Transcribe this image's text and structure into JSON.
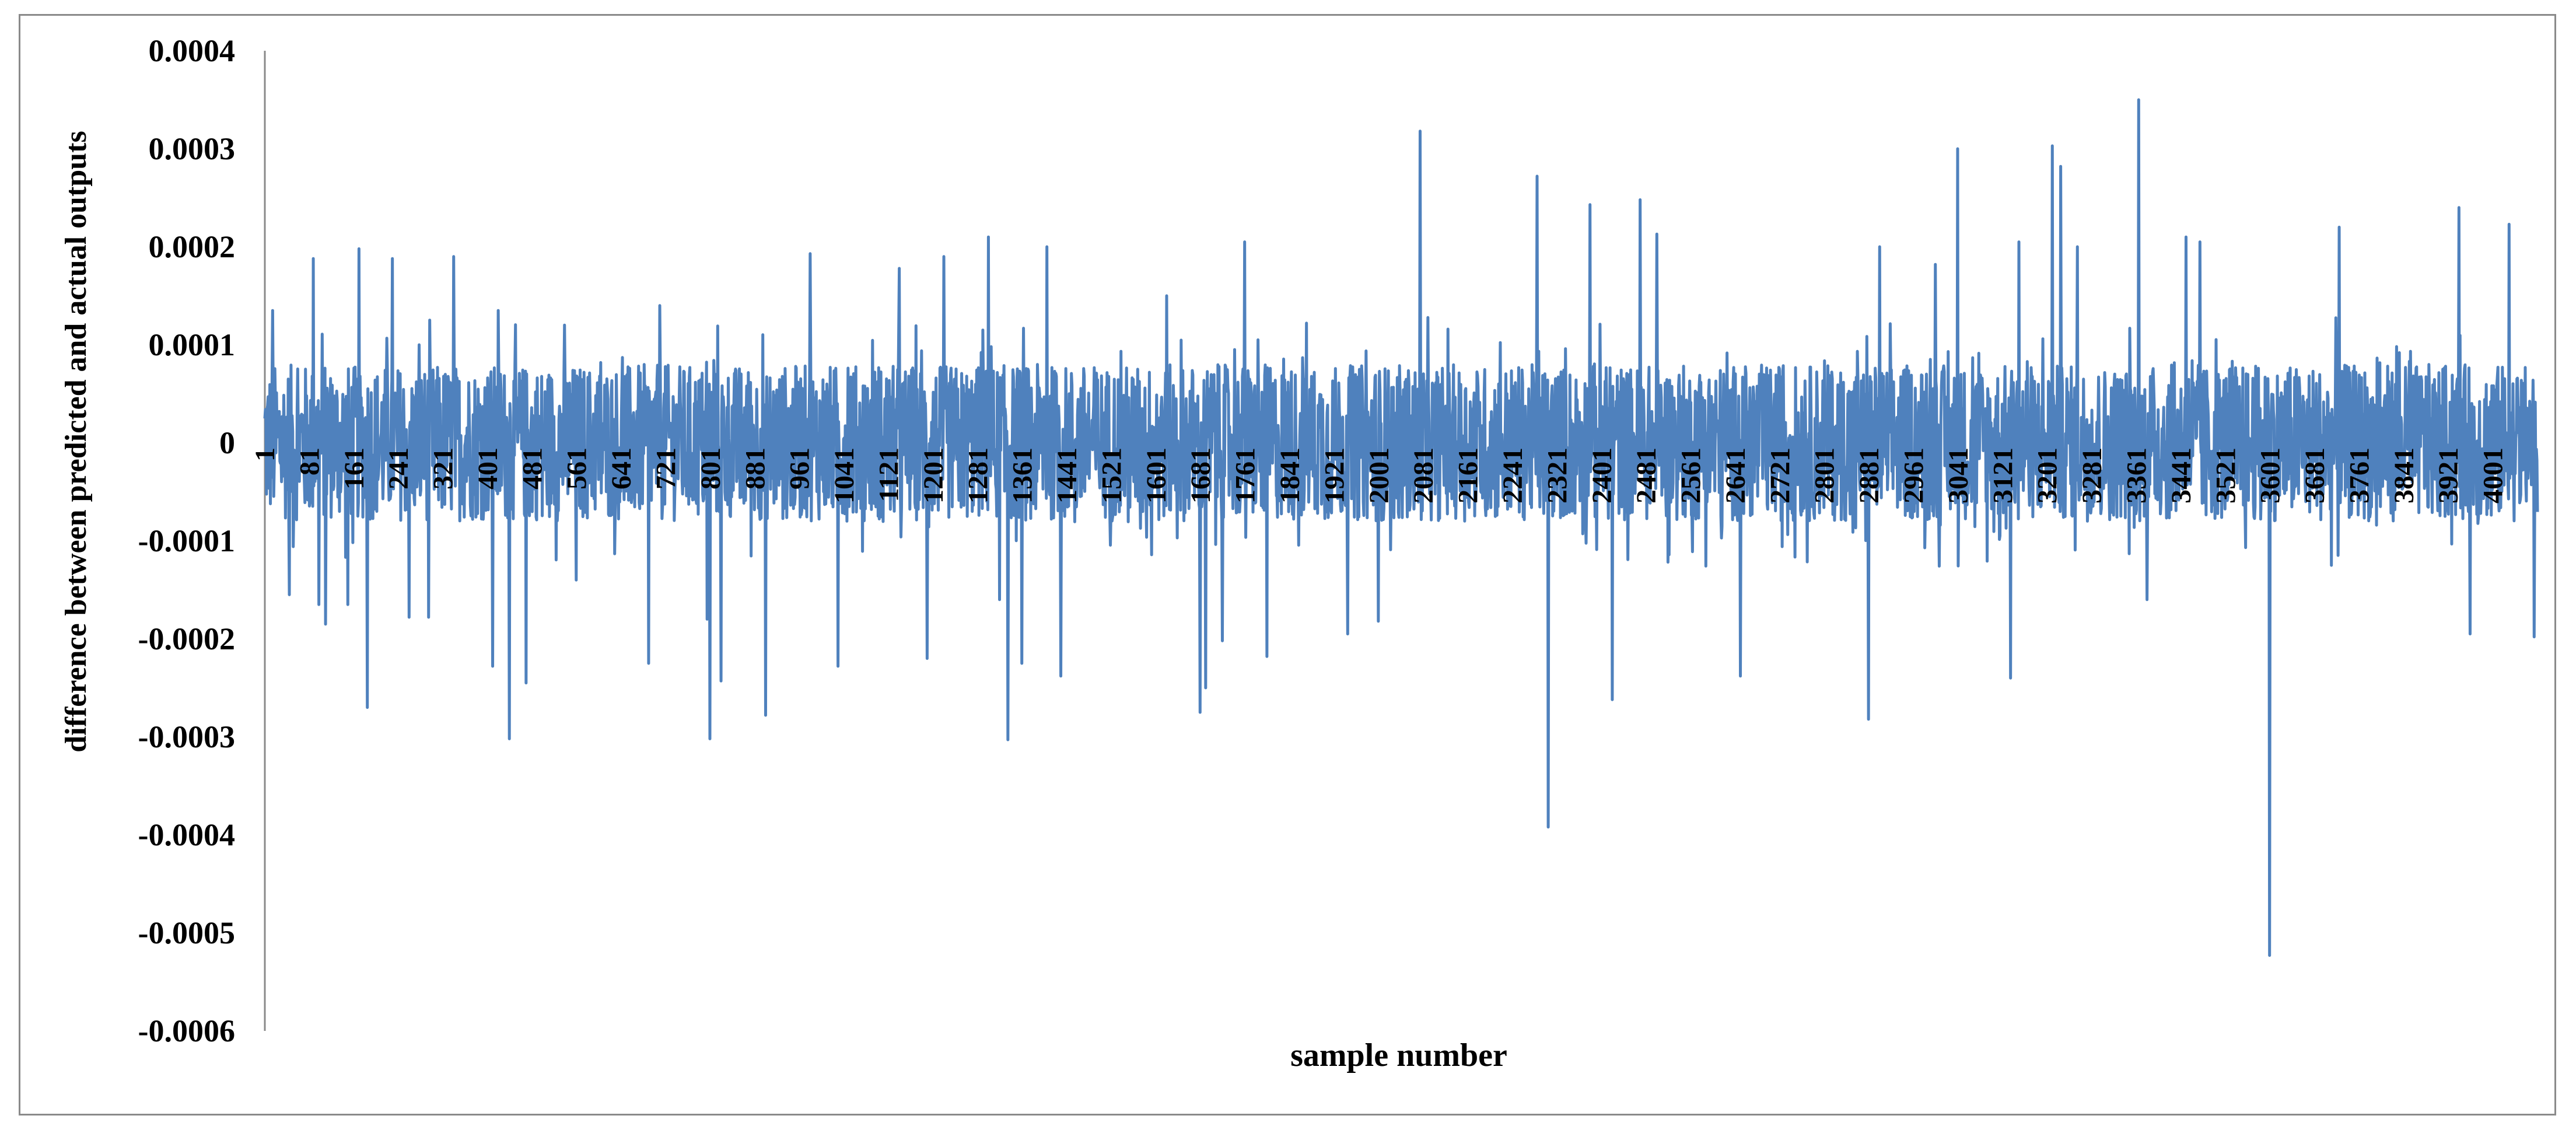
{
  "chart_data": {
    "type": "line",
    "title": "",
    "xlabel": "sample number",
    "ylabel": "difference between predicted and actual outputs",
    "ylim": [
      -0.0006,
      0.0004
    ],
    "xlim": [
      1,
      4081
    ],
    "y_ticks": [
      "0.0004",
      "0.0003",
      "0.0002",
      "0.0001",
      "0",
      "-0.0001",
      "-0.0002",
      "-0.0003",
      "-0.0004",
      "-0.0005",
      "-0.0006"
    ],
    "x_tick_labels": [
      "1",
      "81",
      "161",
      "241",
      "321",
      "401",
      "481",
      "561",
      "641",
      "721",
      "801",
      "881",
      "961",
      "1041",
      "1121",
      "1201",
      "1281",
      "1361",
      "1441",
      "1521",
      "1601",
      "1681",
      "1761",
      "1841",
      "1921",
      "2001",
      "2081",
      "2161",
      "2241",
      "2321",
      "2401",
      "2481",
      "2561",
      "2641",
      "2721",
      "2801",
      "2881",
      "2961",
      "3041",
      "3121",
      "3201",
      "3281",
      "3361",
      "3441",
      "3521",
      "3601",
      "3681",
      "3761",
      "3841",
      "3921",
      "4001"
    ],
    "grid": false,
    "legend": "none",
    "series": [
      {
        "color": "#4f81bd",
        "noise_amplitude": 8e-05,
        "peaks": [
          [
            15,
            0.000135
          ],
          [
            45,
            -0.000155
          ],
          [
            88,
            0.000188
          ],
          [
            98,
            -0.000165
          ],
          [
            110,
            -0.000185
          ],
          [
            150,
            -0.000165
          ],
          [
            170,
            0.000198
          ],
          [
            185,
            -0.00027
          ],
          [
            230,
            0.000188
          ],
          [
            260,
            -0.000178
          ],
          [
            295,
            -0.000178
          ],
          [
            340,
            0.00019
          ],
          [
            410,
            -0.000228
          ],
          [
            420,
            0.000135
          ],
          [
            440,
            -0.000302
          ],
          [
            470,
            -0.000245
          ],
          [
            560,
            -0.00014
          ],
          [
            690,
            -0.000225
          ],
          [
            710,
            0.00014
          ],
          [
            795,
            -0.00018
          ],
          [
            800,
            -0.000302
          ],
          [
            820,
            -0.000243
          ],
          [
            900,
            -0.000278
          ],
          [
            980,
            0.000193
          ],
          [
            1030,
            -0.000228
          ],
          [
            1140,
            0.000178
          ],
          [
            1190,
            -0.00022
          ],
          [
            1220,
            0.00019
          ],
          [
            1300,
            0.00021
          ],
          [
            1320,
            -0.00016
          ],
          [
            1335,
            -0.000303
          ],
          [
            1360,
            -0.000225
          ],
          [
            1405,
            0.0002
          ],
          [
            1430,
            -0.000238
          ],
          [
            1620,
            0.00015
          ],
          [
            1680,
            -0.000275
          ],
          [
            1690,
            -0.00025
          ],
          [
            1720,
            -0.000202
          ],
          [
            1760,
            0.000205
          ],
          [
            1800,
            -0.000218
          ],
          [
            1945,
            -0.000195
          ],
          [
            2000,
            -0.000182
          ],
          [
            2075,
            0.000318
          ],
          [
            2285,
            0.000272
          ],
          [
            2305,
            -0.000392
          ],
          [
            2380,
            0.000243
          ],
          [
            2420,
            -0.000262
          ],
          [
            2470,
            0.000248
          ],
          [
            2500,
            0.000213
          ],
          [
            2650,
            -0.000238
          ],
          [
            2880,
            -0.000282
          ],
          [
            2900,
            0.0002
          ],
          [
            3000,
            0.000182
          ],
          [
            3040,
            0.0003
          ],
          [
            3135,
            -0.00024
          ],
          [
            3150,
            0.000205
          ],
          [
            3210,
            0.000303
          ],
          [
            3225,
            0.000282
          ],
          [
            3255,
            0.0002
          ],
          [
            3365,
            0.00035
          ],
          [
            3380,
            -0.00016
          ],
          [
            3450,
            0.00021
          ],
          [
            3475,
            0.000205
          ],
          [
            3600,
            -0.000523
          ],
          [
            3725,
            0.00022
          ],
          [
            3940,
            0.00024
          ],
          [
            3960,
            -0.000195
          ],
          [
            4030,
            0.000223
          ],
          [
            4075,
            -0.000198
          ]
        ]
      }
    ]
  }
}
